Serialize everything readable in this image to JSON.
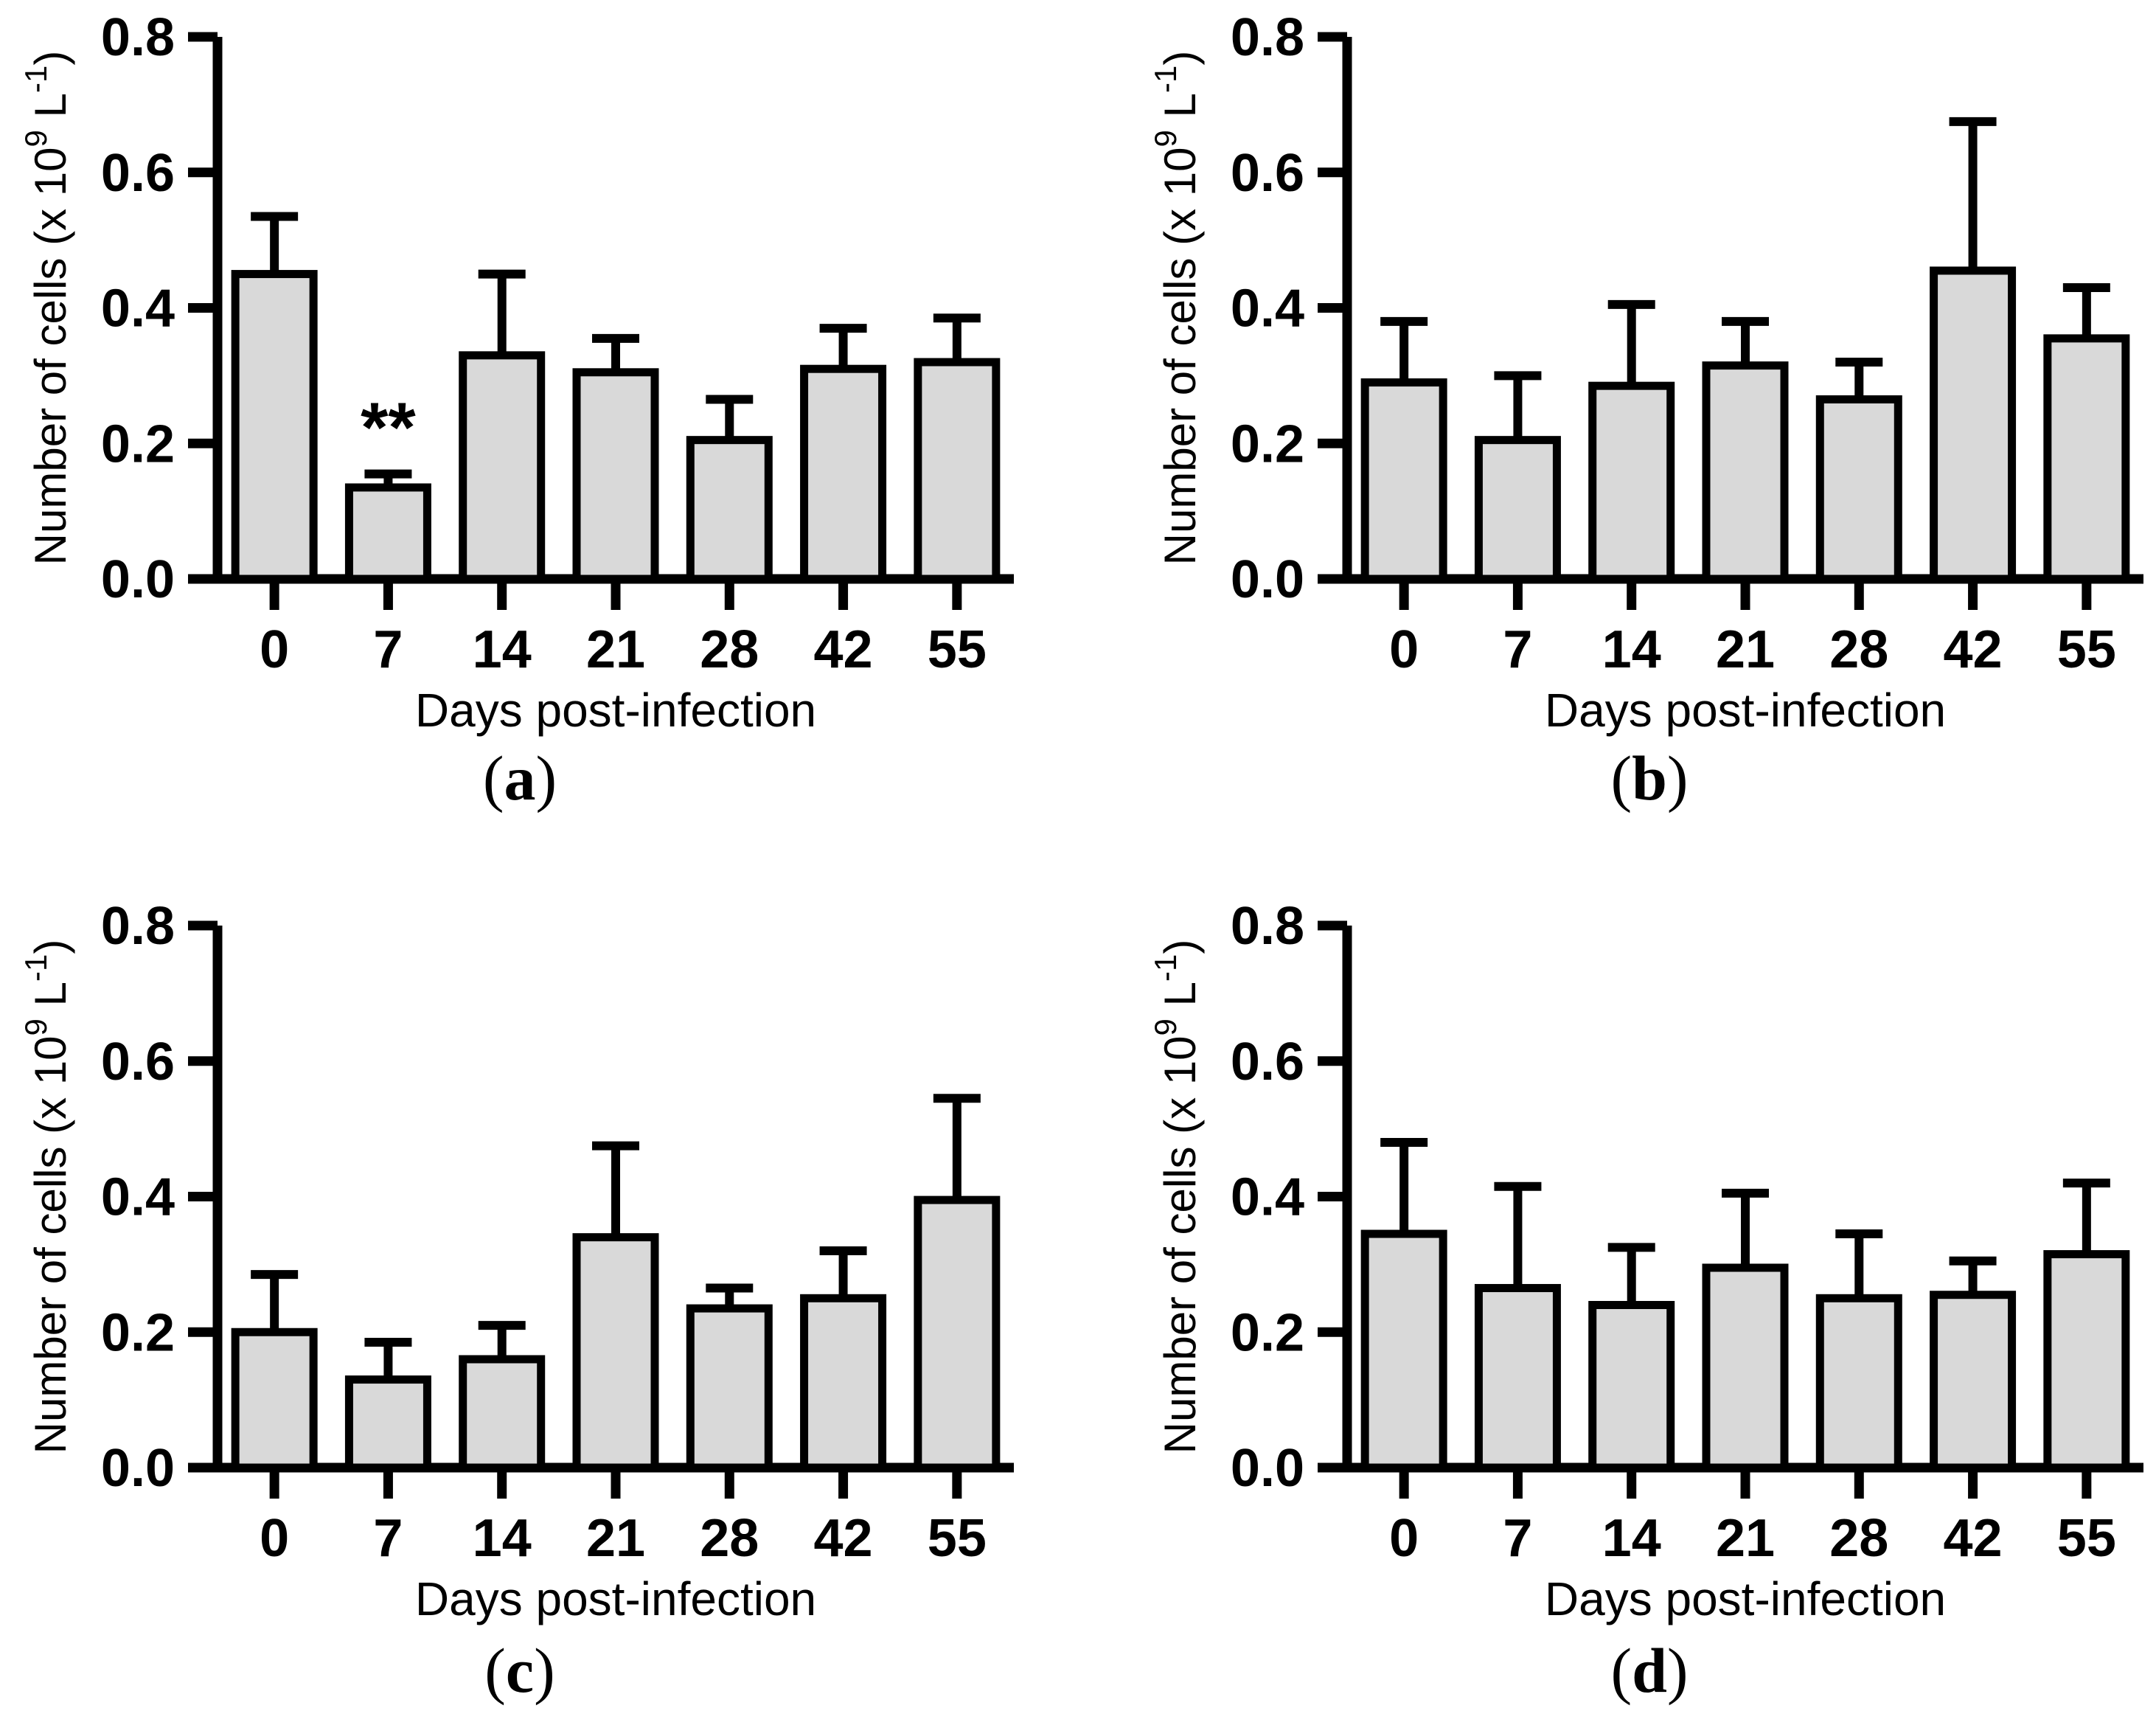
{
  "figure": {
    "background": "#ffffff",
    "bar_fill": "#d9d9d9",
    "bar_stroke": "#000000",
    "axis_color": "#000000",
    "text_color": "#000000"
  },
  "chart_data": [
    {
      "type": "bar",
      "panel_label": {
        "pre": "(",
        "letter": "a",
        "post": ")"
      },
      "categories": [
        "0",
        "7",
        "14",
        "21",
        "28",
        "42",
        "55"
      ],
      "values": [
        0.45,
        0.135,
        0.33,
        0.305,
        0.205,
        0.31,
        0.32
      ],
      "errors_plus": [
        0.085,
        0.02,
        0.12,
        0.05,
        0.06,
        0.06,
        0.065
      ],
      "xlabel": "Days post-infection",
      "ylabel": "Number of cells (x 10⁹ L⁻¹)",
      "ylabel_parts": [
        {
          "t": "Number of cells (x 10"
        },
        {
          "t": "9",
          "sup": true
        },
        {
          "t": " L"
        },
        {
          "t": "-1",
          "sup": true
        },
        {
          "t": ")"
        }
      ],
      "ylim": [
        0,
        0.8
      ],
      "yticks": [
        "0.0",
        "0.2",
        "0.4",
        "0.6",
        "0.8"
      ],
      "grid": false,
      "annotations": [
        {
          "category_index": 1,
          "text": "**"
        }
      ]
    },
    {
      "type": "bar",
      "panel_label": {
        "pre": "(",
        "letter": "b",
        "post": ")"
      },
      "categories": [
        "0",
        "7",
        "14",
        "21",
        "28",
        "42",
        "55"
      ],
      "values": [
        0.29,
        0.205,
        0.285,
        0.315,
        0.265,
        0.455,
        0.355
      ],
      "errors_plus": [
        0.09,
        0.095,
        0.12,
        0.065,
        0.055,
        0.22,
        0.075
      ],
      "xlabel": "Days post-infection",
      "ylabel": "Number of cells (x 10⁹ L⁻¹)",
      "ylabel_parts": [
        {
          "t": "Number of cells (x 10"
        },
        {
          "t": "9",
          "sup": true
        },
        {
          "t": " L"
        },
        {
          "t": "-1",
          "sup": true
        },
        {
          "t": ")"
        }
      ],
      "ylim": [
        0,
        0.8
      ],
      "yticks": [
        "0.0",
        "0.2",
        "0.4",
        "0.6",
        "0.8"
      ],
      "grid": false,
      "annotations": []
    },
    {
      "type": "bar",
      "panel_label": {
        "pre": "(",
        "letter": "c",
        "post": ")"
      },
      "categories": [
        "0",
        "7",
        "14",
        "21",
        "28",
        "42",
        "55"
      ],
      "values": [
        0.2,
        0.13,
        0.16,
        0.34,
        0.235,
        0.25,
        0.395
      ],
      "errors_plus": [
        0.085,
        0.055,
        0.05,
        0.135,
        0.03,
        0.07,
        0.15
      ],
      "xlabel": "Days post-infection",
      "ylabel": "Number of cells (x 10⁹ L⁻¹)",
      "ylabel_parts": [
        {
          "t": "Number of cells (x 10"
        },
        {
          "t": "9",
          "sup": true
        },
        {
          "t": " L"
        },
        {
          "t": "-1",
          "sup": true
        },
        {
          "t": ")"
        }
      ],
      "ylim": [
        0,
        0.8
      ],
      "yticks": [
        "0.0",
        "0.2",
        "0.4",
        "0.6",
        "0.8"
      ],
      "grid": false,
      "annotations": []
    },
    {
      "type": "bar",
      "panel_label": {
        "pre": "(",
        "letter": "d",
        "post": ")"
      },
      "categories": [
        "0",
        "7",
        "14",
        "21",
        "28",
        "42",
        "55"
      ],
      "values": [
        0.345,
        0.265,
        0.24,
        0.295,
        0.25,
        0.255,
        0.315
      ],
      "errors_plus": [
        0.135,
        0.15,
        0.085,
        0.11,
        0.095,
        0.05,
        0.105
      ],
      "xlabel": "Days post-infection",
      "ylabel": "Number of cells (x 10⁹ L⁻¹)",
      "ylabel_parts": [
        {
          "t": "Number of cells (x 10"
        },
        {
          "t": "9",
          "sup": true
        },
        {
          "t": " L"
        },
        {
          "t": "-1",
          "sup": true
        },
        {
          "t": ")"
        }
      ],
      "ylim": [
        0,
        0.8
      ],
      "yticks": [
        "0.0",
        "0.2",
        "0.4",
        "0.6",
        "0.8"
      ],
      "grid": false,
      "annotations": []
    }
  ]
}
